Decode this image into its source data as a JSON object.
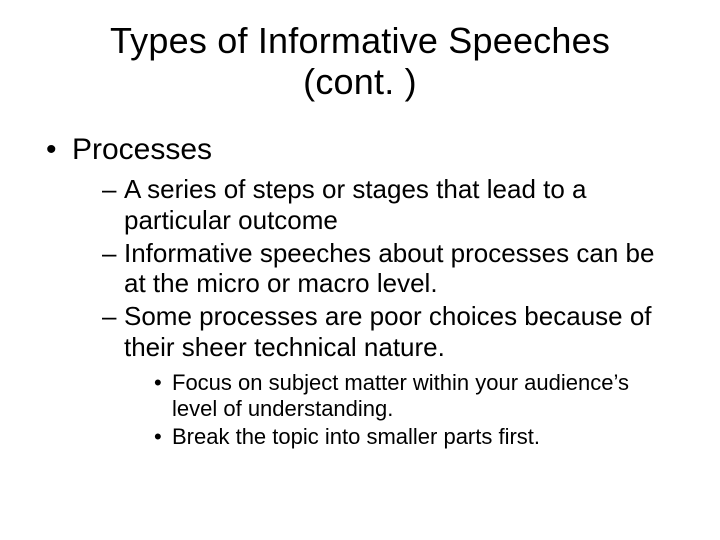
{
  "slide": {
    "background_color": "#ffffff",
    "text_color": "#000000",
    "font_family": "Arial",
    "title": {
      "line1": "Types of Informative Speeches",
      "line2": "(cont. )",
      "fontsize": 36,
      "align": "center",
      "weight": "normal"
    },
    "bullets": {
      "level1_fontsize": 30,
      "level2_fontsize": 26,
      "level3_fontsize": 22,
      "level1_marker": "•",
      "level2_marker": "–",
      "level3_marker": "•",
      "items": [
        {
          "text": "Processes",
          "children": [
            {
              "text": "A series of steps or stages that lead to a particular outcome"
            },
            {
              "text": "Informative speeches about processes can be at the micro or macro level."
            },
            {
              "text": "Some processes are poor choices because of their sheer technical nature.",
              "children": [
                {
                  "text": "Focus on subject matter within your audience’s level of understanding."
                },
                {
                  "text": "Break the topic into smaller parts first."
                }
              ]
            }
          ]
        }
      ]
    }
  }
}
